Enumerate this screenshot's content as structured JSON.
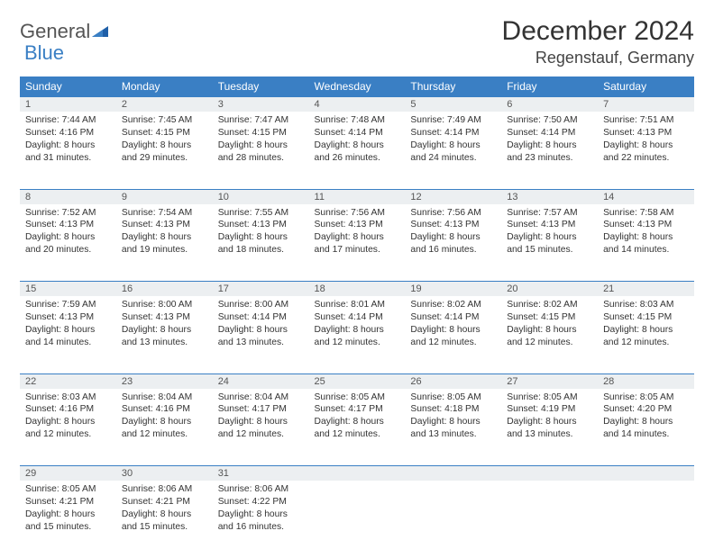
{
  "brand": {
    "name1": "General",
    "name2": "Blue"
  },
  "title": "December 2024",
  "location": "Regenstauf, Germany",
  "colors": {
    "header_bg": "#3a7fc4",
    "header_text": "#ffffff",
    "daynum_bg": "#eceff1",
    "border": "#3a7fc4",
    "text": "#333333",
    "brand_gray": "#555555",
    "brand_blue": "#3a7fc4"
  },
  "typography": {
    "title_fontsize": 30,
    "location_fontsize": 18,
    "weekday_fontsize": 12,
    "cell_fontsize": 10.3
  },
  "weekdays": [
    "Sunday",
    "Monday",
    "Tuesday",
    "Wednesday",
    "Thursday",
    "Friday",
    "Saturday"
  ],
  "weeks": [
    [
      {
        "day": "1",
        "sunrise": "Sunrise: 7:44 AM",
        "sunset": "Sunset: 4:16 PM",
        "daylight": "Daylight: 8 hours and 31 minutes."
      },
      {
        "day": "2",
        "sunrise": "Sunrise: 7:45 AM",
        "sunset": "Sunset: 4:15 PM",
        "daylight": "Daylight: 8 hours and 29 minutes."
      },
      {
        "day": "3",
        "sunrise": "Sunrise: 7:47 AM",
        "sunset": "Sunset: 4:15 PM",
        "daylight": "Daylight: 8 hours and 28 minutes."
      },
      {
        "day": "4",
        "sunrise": "Sunrise: 7:48 AM",
        "sunset": "Sunset: 4:14 PM",
        "daylight": "Daylight: 8 hours and 26 minutes."
      },
      {
        "day": "5",
        "sunrise": "Sunrise: 7:49 AM",
        "sunset": "Sunset: 4:14 PM",
        "daylight": "Daylight: 8 hours and 24 minutes."
      },
      {
        "day": "6",
        "sunrise": "Sunrise: 7:50 AM",
        "sunset": "Sunset: 4:14 PM",
        "daylight": "Daylight: 8 hours and 23 minutes."
      },
      {
        "day": "7",
        "sunrise": "Sunrise: 7:51 AM",
        "sunset": "Sunset: 4:13 PM",
        "daylight": "Daylight: 8 hours and 22 minutes."
      }
    ],
    [
      {
        "day": "8",
        "sunrise": "Sunrise: 7:52 AM",
        "sunset": "Sunset: 4:13 PM",
        "daylight": "Daylight: 8 hours and 20 minutes."
      },
      {
        "day": "9",
        "sunrise": "Sunrise: 7:54 AM",
        "sunset": "Sunset: 4:13 PM",
        "daylight": "Daylight: 8 hours and 19 minutes."
      },
      {
        "day": "10",
        "sunrise": "Sunrise: 7:55 AM",
        "sunset": "Sunset: 4:13 PM",
        "daylight": "Daylight: 8 hours and 18 minutes."
      },
      {
        "day": "11",
        "sunrise": "Sunrise: 7:56 AM",
        "sunset": "Sunset: 4:13 PM",
        "daylight": "Daylight: 8 hours and 17 minutes."
      },
      {
        "day": "12",
        "sunrise": "Sunrise: 7:56 AM",
        "sunset": "Sunset: 4:13 PM",
        "daylight": "Daylight: 8 hours and 16 minutes."
      },
      {
        "day": "13",
        "sunrise": "Sunrise: 7:57 AM",
        "sunset": "Sunset: 4:13 PM",
        "daylight": "Daylight: 8 hours and 15 minutes."
      },
      {
        "day": "14",
        "sunrise": "Sunrise: 7:58 AM",
        "sunset": "Sunset: 4:13 PM",
        "daylight": "Daylight: 8 hours and 14 minutes."
      }
    ],
    [
      {
        "day": "15",
        "sunrise": "Sunrise: 7:59 AM",
        "sunset": "Sunset: 4:13 PM",
        "daylight": "Daylight: 8 hours and 14 minutes."
      },
      {
        "day": "16",
        "sunrise": "Sunrise: 8:00 AM",
        "sunset": "Sunset: 4:13 PM",
        "daylight": "Daylight: 8 hours and 13 minutes."
      },
      {
        "day": "17",
        "sunrise": "Sunrise: 8:00 AM",
        "sunset": "Sunset: 4:14 PM",
        "daylight": "Daylight: 8 hours and 13 minutes."
      },
      {
        "day": "18",
        "sunrise": "Sunrise: 8:01 AM",
        "sunset": "Sunset: 4:14 PM",
        "daylight": "Daylight: 8 hours and 12 minutes."
      },
      {
        "day": "19",
        "sunrise": "Sunrise: 8:02 AM",
        "sunset": "Sunset: 4:14 PM",
        "daylight": "Daylight: 8 hours and 12 minutes."
      },
      {
        "day": "20",
        "sunrise": "Sunrise: 8:02 AM",
        "sunset": "Sunset: 4:15 PM",
        "daylight": "Daylight: 8 hours and 12 minutes."
      },
      {
        "day": "21",
        "sunrise": "Sunrise: 8:03 AM",
        "sunset": "Sunset: 4:15 PM",
        "daylight": "Daylight: 8 hours and 12 minutes."
      }
    ],
    [
      {
        "day": "22",
        "sunrise": "Sunrise: 8:03 AM",
        "sunset": "Sunset: 4:16 PM",
        "daylight": "Daylight: 8 hours and 12 minutes."
      },
      {
        "day": "23",
        "sunrise": "Sunrise: 8:04 AM",
        "sunset": "Sunset: 4:16 PM",
        "daylight": "Daylight: 8 hours and 12 minutes."
      },
      {
        "day": "24",
        "sunrise": "Sunrise: 8:04 AM",
        "sunset": "Sunset: 4:17 PM",
        "daylight": "Daylight: 8 hours and 12 minutes."
      },
      {
        "day": "25",
        "sunrise": "Sunrise: 8:05 AM",
        "sunset": "Sunset: 4:17 PM",
        "daylight": "Daylight: 8 hours and 12 minutes."
      },
      {
        "day": "26",
        "sunrise": "Sunrise: 8:05 AM",
        "sunset": "Sunset: 4:18 PM",
        "daylight": "Daylight: 8 hours and 13 minutes."
      },
      {
        "day": "27",
        "sunrise": "Sunrise: 8:05 AM",
        "sunset": "Sunset: 4:19 PM",
        "daylight": "Daylight: 8 hours and 13 minutes."
      },
      {
        "day": "28",
        "sunrise": "Sunrise: 8:05 AM",
        "sunset": "Sunset: 4:20 PM",
        "daylight": "Daylight: 8 hours and 14 minutes."
      }
    ],
    [
      {
        "day": "29",
        "sunrise": "Sunrise: 8:05 AM",
        "sunset": "Sunset: 4:21 PM",
        "daylight": "Daylight: 8 hours and 15 minutes."
      },
      {
        "day": "30",
        "sunrise": "Sunrise: 8:06 AM",
        "sunset": "Sunset: 4:21 PM",
        "daylight": "Daylight: 8 hours and 15 minutes."
      },
      {
        "day": "31",
        "sunrise": "Sunrise: 8:06 AM",
        "sunset": "Sunset: 4:22 PM",
        "daylight": "Daylight: 8 hours and 16 minutes."
      },
      null,
      null,
      null,
      null
    ]
  ]
}
